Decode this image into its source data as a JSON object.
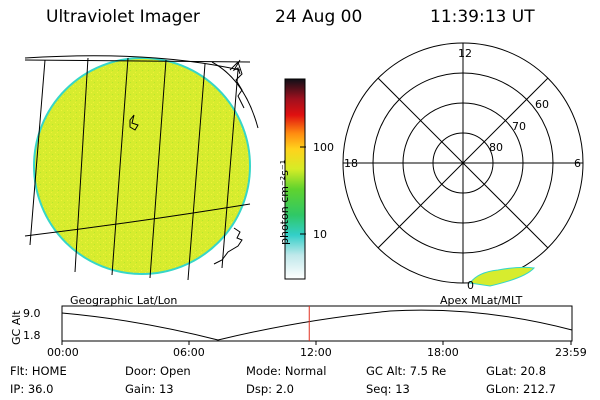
{
  "header": {
    "title": "Ultraviolet Imager",
    "date": "24 Aug 00",
    "time": "11:39:13 UT"
  },
  "colorbar": {
    "unit_label": "photon cm⁻²s⁻¹",
    "ticks": [
      "100",
      "10"
    ]
  },
  "polar_plot": {
    "mlt_labels": {
      "top": "12",
      "left": "18",
      "right": "6",
      "bottom": "0"
    },
    "lat_labels": [
      "60",
      "70",
      "80"
    ]
  },
  "panel_labels": {
    "geo": "Geographic Lat/Lon",
    "apex": "Apex MLat/MLT"
  },
  "altitude_strip": {
    "axis_label": "GC Alt",
    "ymax_label": "9.0",
    "ymin_label": "1.8",
    "time_ticks": [
      "00:00",
      "06:00",
      "12:00",
      "18:00",
      "23:59"
    ],
    "current_time_hours": 11.65
  },
  "info": {
    "row1": [
      {
        "key": "Flt:",
        "value": "HOME"
      },
      {
        "key": "Door:",
        "value": "Open"
      },
      {
        "key": "Mode:",
        "value": "Normal"
      },
      {
        "key": "GC Alt:",
        "value": "7.5 Re"
      },
      {
        "key": "GLat:",
        "value": "20.8"
      }
    ],
    "row2": [
      {
        "key": "IP:",
        "value": "36.0"
      },
      {
        "key": "Gain:",
        "value": "13"
      },
      {
        "key": "Dsp:",
        "value": "2.0"
      },
      {
        "key": "Seq:",
        "value": "13"
      },
      {
        "key": "GLon:",
        "value": "212.7"
      }
    ]
  },
  "colors": {
    "earth_fill": "#d7ec2e",
    "limb": "#36d6c8",
    "marker": "#e03020"
  }
}
